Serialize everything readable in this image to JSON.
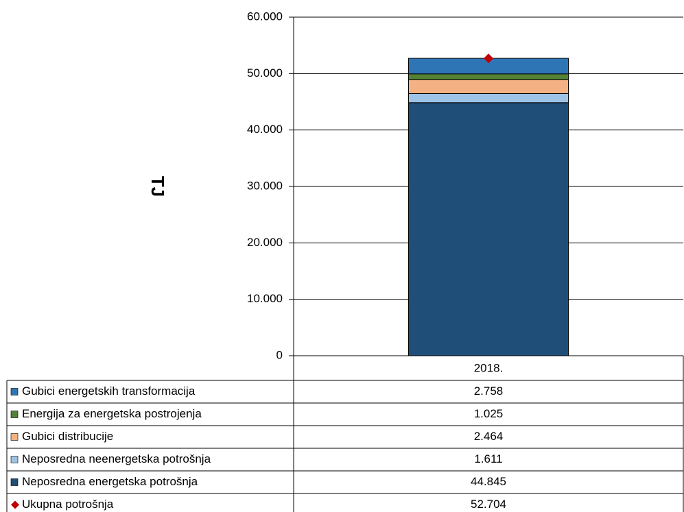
{
  "chart_data": {
    "type": "stacked_bar",
    "y_label": "TJ",
    "categories": [
      "2018."
    ],
    "series": [
      {
        "name": "Neposredna energetska potrošnja",
        "color": "#1f4e79",
        "values": [
          44845
        ],
        "value_labels": [
          "44.845"
        ]
      },
      {
        "name": "Neposredna neenergetska potrošnja",
        "color": "#9dc3e6",
        "values": [
          1611
        ],
        "value_labels": [
          "1.611"
        ]
      },
      {
        "name": "Gubici distribucije",
        "color": "#f4b183",
        "values": [
          2464
        ],
        "value_labels": [
          "2.464"
        ]
      },
      {
        "name": "Energija za energetska postrojenja",
        "color": "#548235",
        "values": [
          1025
        ],
        "value_labels": [
          "1.025"
        ]
      },
      {
        "name": "Gubici energetskih transformacija",
        "color": "#2e75b6",
        "values": [
          2758
        ],
        "value_labels": [
          "2.758"
        ]
      }
    ],
    "total": {
      "name": "Ukupna potrošnja",
      "color": "#c00000",
      "values": [
        52704
      ],
      "value_labels": [
        "52.704"
      ]
    },
    "ylim": [
      0,
      60000
    ],
    "yticks": [
      0,
      {
        "value": 10000,
        "label": "10.000"
      },
      {
        "value": 20000,
        "label": "20.000"
      },
      {
        "value": 30000,
        "label": "30.000"
      },
      {
        "value": 40000,
        "label": "40.000"
      },
      {
        "value": 50000,
        "label": "50.000"
      },
      {
        "value": 60000,
        "label": "60.000"
      }
    ],
    "grid": true
  }
}
